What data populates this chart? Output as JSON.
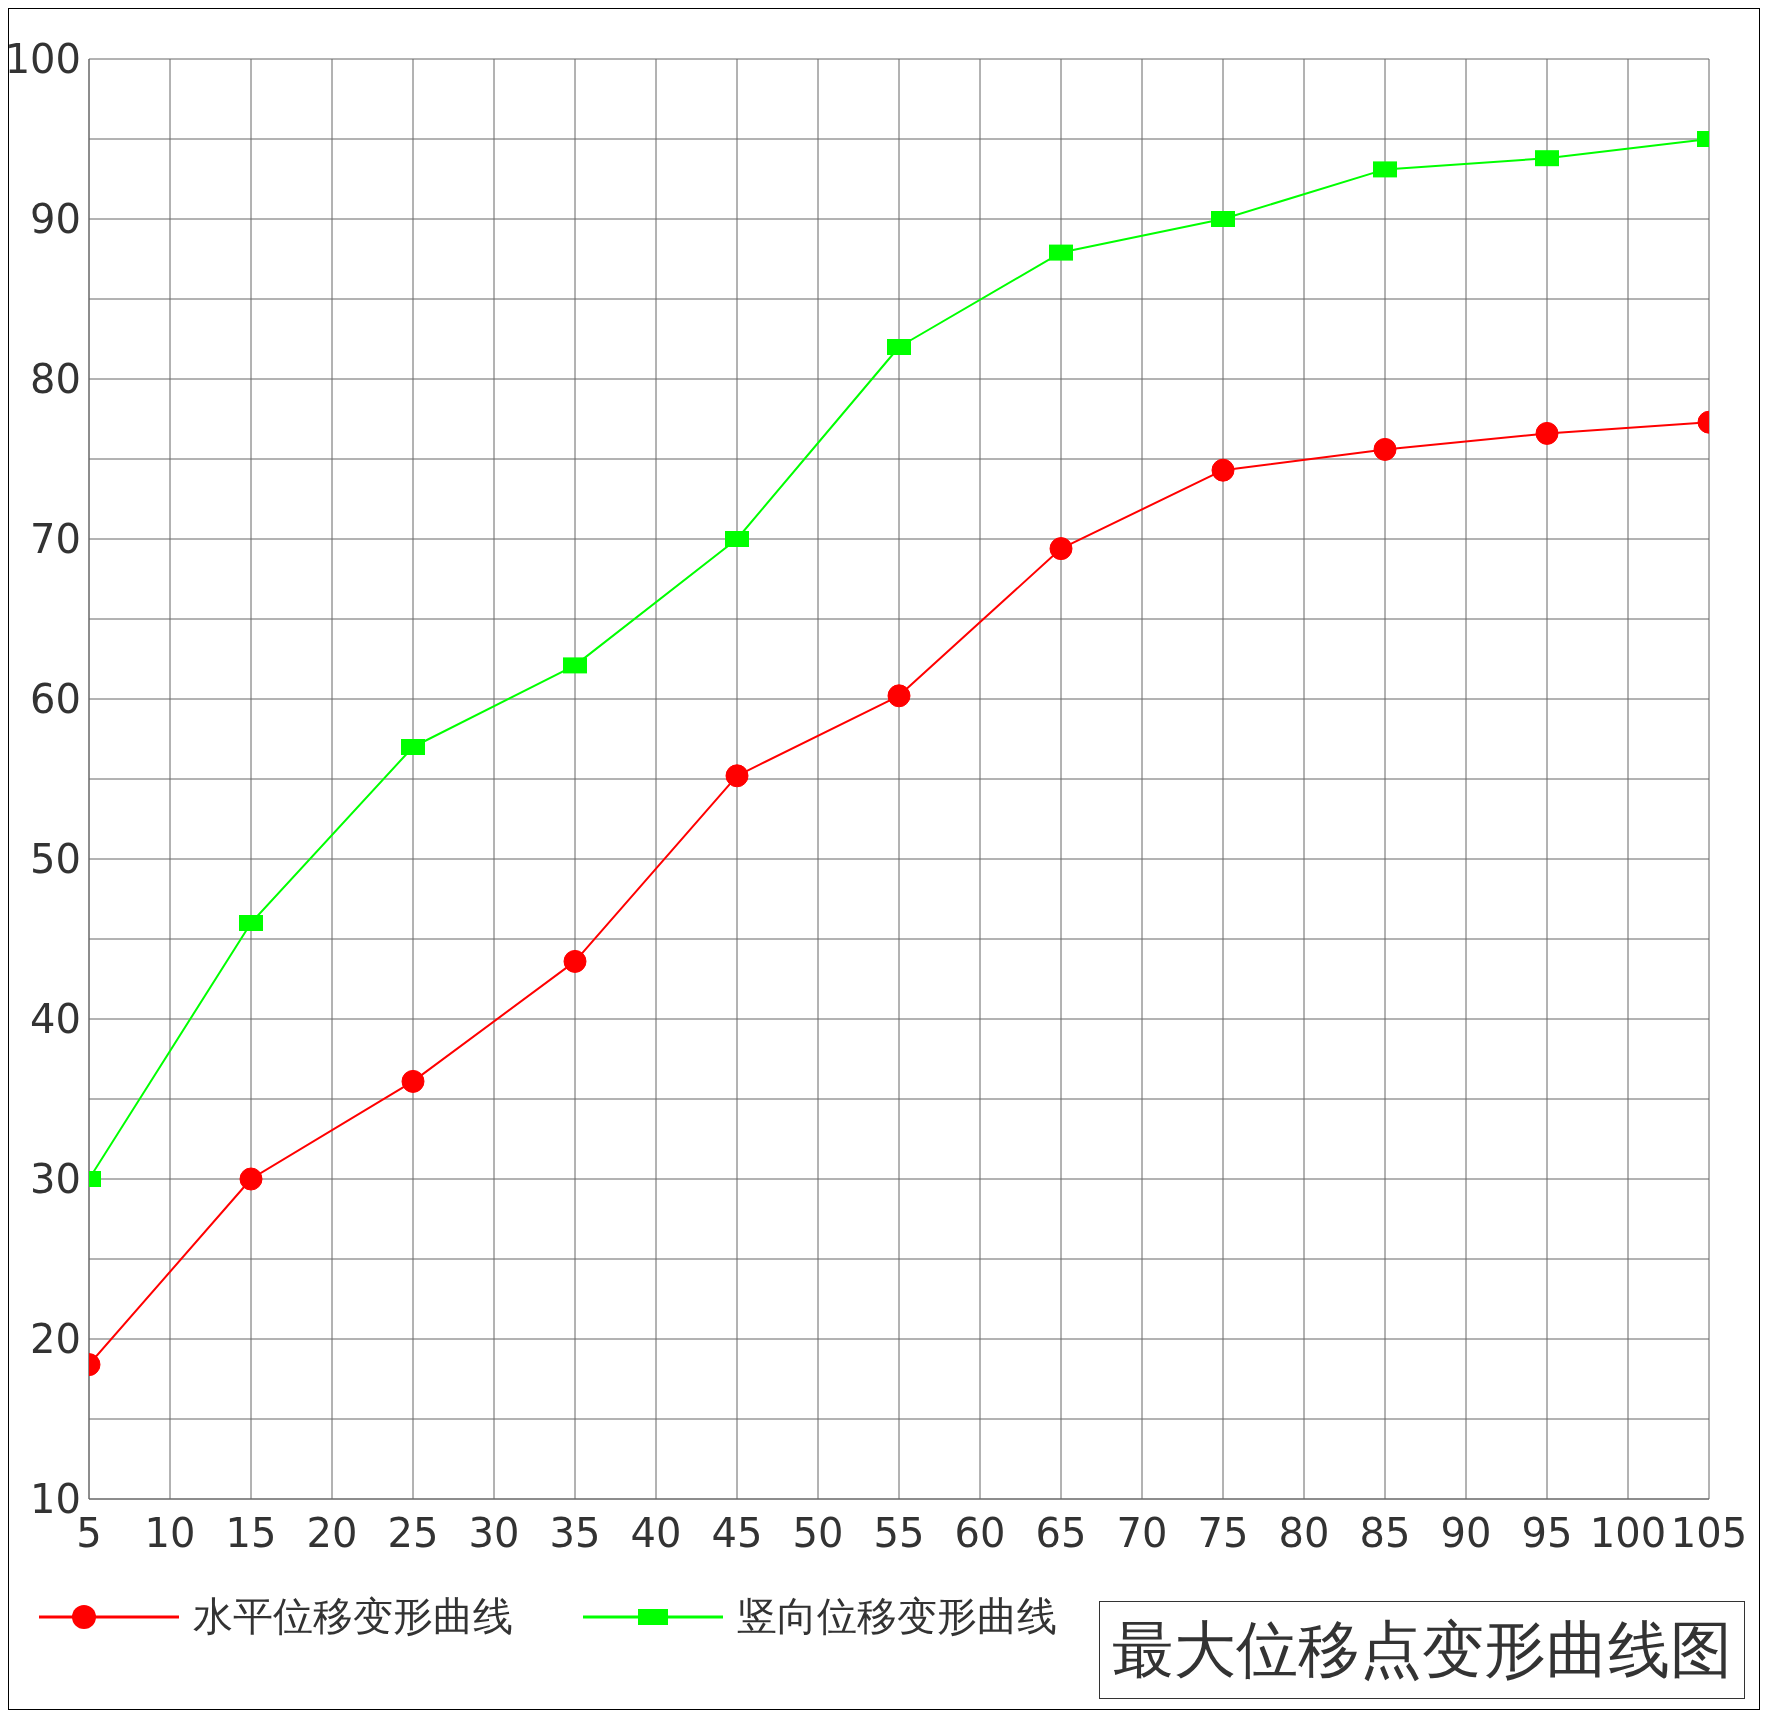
{
  "chart_data": {
    "type": "line",
    "title": "最大位移点变形曲线图",
    "x": [
      5,
      15,
      25,
      35,
      45,
      55,
      65,
      75,
      85,
      95,
      105
    ],
    "series": [
      {
        "name": "水平位移变形曲线",
        "color": "#ff0000",
        "marker": "circle",
        "values": [
          18.4,
          30,
          36.1,
          43.6,
          55.2,
          60.2,
          69.4,
          74.3,
          75.6,
          76.6,
          77.3
        ]
      },
      {
        "name": "竖向位移变形曲线",
        "color": "#00ff00",
        "marker": "square",
        "values": [
          30,
          46,
          57,
          62.1,
          70,
          82,
          87.9,
          90,
          93.1,
          93.8,
          95
        ]
      }
    ],
    "xlim": [
      5,
      105
    ],
    "xticks": [
      5,
      10,
      15,
      20,
      25,
      30,
      35,
      40,
      45,
      50,
      55,
      60,
      65,
      70,
      75,
      80,
      85,
      90,
      95,
      100,
      105
    ],
    "ylim": [
      10,
      100
    ],
    "yticks": [
      10,
      {
        "value": 15,
        "label": null
      },
      20,
      {
        "value": 25,
        "label": null
      },
      30,
      {
        "value": 35,
        "label": null
      },
      40,
      {
        "value": 45,
        "label": null
      },
      50,
      {
        "value": 55,
        "label": null
      },
      60,
      {
        "value": 65,
        "label": null
      },
      70,
      {
        "value": 75,
        "label": null
      },
      80,
      {
        "value": 85,
        "label": null
      },
      90,
      {
        "value": 95,
        "label": null
      },
      100
    ],
    "grid": true,
    "legend": "bottom",
    "line_style": "solid"
  }
}
